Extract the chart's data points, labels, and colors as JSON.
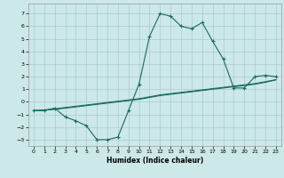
{
  "xlabel": "Humidex (Indice chaleur)",
  "bg_color": "#cce8e8",
  "grid_color": "#aacccc",
  "line_color": "#1a6b5a",
  "xlim": [
    -0.5,
    23.5
  ],
  "ylim": [
    -3.5,
    7.8
  ],
  "xticks": [
    0,
    1,
    2,
    3,
    4,
    5,
    6,
    7,
    8,
    9,
    10,
    11,
    12,
    13,
    14,
    15,
    16,
    17,
    18,
    19,
    20,
    21,
    22,
    23
  ],
  "yticks": [
    -3,
    -2,
    -1,
    0,
    1,
    2,
    3,
    4,
    5,
    6,
    7
  ],
  "curve1_x": [
    0,
    1,
    2,
    3,
    4,
    5,
    6,
    7,
    8,
    9,
    10,
    11,
    12,
    13,
    14,
    15,
    16,
    17,
    18,
    19,
    20,
    21,
    22,
    23
  ],
  "curve1_y": [
    -0.7,
    -0.7,
    -0.5,
    -1.2,
    -1.5,
    -1.9,
    -3.0,
    -3.0,
    -2.8,
    -0.7,
    1.4,
    5.2,
    7.0,
    6.8,
    6.0,
    5.8,
    6.3,
    4.8,
    3.4,
    1.1,
    1.1,
    2.0,
    2.1,
    2.0
  ],
  "curve2_x": [
    0,
    1,
    2,
    3,
    4,
    5,
    6,
    7,
    8,
    9,
    10,
    11,
    12,
    13,
    14,
    15,
    16,
    17,
    18,
    19,
    20,
    21,
    22,
    23
  ],
  "curve2_y": [
    -0.7,
    -0.65,
    -0.55,
    -0.45,
    -0.35,
    -0.25,
    -0.15,
    -0.05,
    0.05,
    0.15,
    0.25,
    0.4,
    0.55,
    0.65,
    0.75,
    0.85,
    0.95,
    1.05,
    1.15,
    1.25,
    1.35,
    1.45,
    1.6,
    1.75
  ],
  "curve3_x": [
    0,
    1,
    2,
    3,
    4,
    5,
    6,
    7,
    8,
    9,
    10,
    11,
    12,
    13,
    14,
    15,
    16,
    17,
    18,
    19,
    20,
    21,
    22,
    23
  ],
  "curve3_y": [
    -0.7,
    -0.65,
    -0.6,
    -0.5,
    -0.4,
    -0.3,
    -0.2,
    -0.1,
    0.0,
    0.1,
    0.2,
    0.35,
    0.5,
    0.6,
    0.7,
    0.8,
    0.9,
    1.0,
    1.1,
    1.2,
    1.3,
    1.4,
    1.55,
    1.75
  ]
}
